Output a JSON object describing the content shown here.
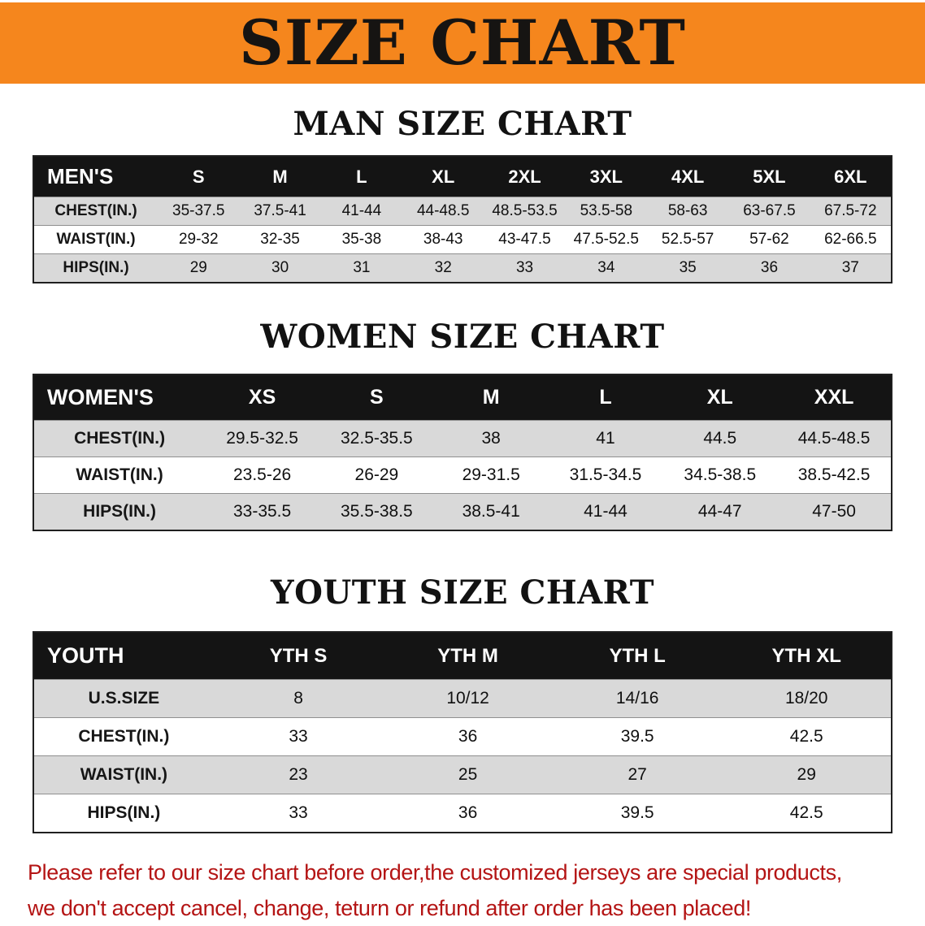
{
  "theme": {
    "banner_bg": "#f5861d",
    "header_bg": "#141414",
    "row_alt": "#d9d9d9",
    "footer_red": "#b41414"
  },
  "banner": {
    "title": "SIZE CHART"
  },
  "sections": [
    {
      "id": "men",
      "heading": "MAN SIZE CHART",
      "table": {
        "corner_label": "MEN'S",
        "sizes": [
          "S",
          "M",
          "L",
          "XL",
          "2XL",
          "3XL",
          "4XL",
          "5XL",
          "6XL"
        ],
        "rows": [
          {
            "label": "CHEST(IN.)",
            "values": [
              "35-37.5",
              "37.5-41",
              "41-44",
              "44-48.5",
              "48.5-53.5",
              "53.5-58",
              "58-63",
              "63-67.5",
              "67.5-72"
            ]
          },
          {
            "label": "WAIST(IN.)",
            "values": [
              "29-32",
              "32-35",
              "35-38",
              "38-43",
              "43-47.5",
              "47.5-52.5",
              "52.5-57",
              "57-62",
              "62-66.5"
            ]
          },
          {
            "label": "HIPS(IN.)",
            "values": [
              "29",
              "30",
              "31",
              "32",
              "33",
              "34",
              "35",
              "36",
              "37"
            ]
          }
        ]
      }
    },
    {
      "id": "women",
      "heading": "WOMEN SIZE CHART",
      "table": {
        "corner_label": "WOMEN'S",
        "sizes": [
          "XS",
          "S",
          "M",
          "L",
          "XL",
          "XXL"
        ],
        "rows": [
          {
            "label": "CHEST(IN.)",
            "values": [
              "29.5-32.5",
              "32.5-35.5",
              "38",
              "41",
              "44.5",
              "44.5-48.5"
            ]
          },
          {
            "label": "WAIST(IN.)",
            "values": [
              "23.5-26",
              "26-29",
              "29-31.5",
              "31.5-34.5",
              "34.5-38.5",
              "38.5-42.5"
            ]
          },
          {
            "label": "HIPS(IN.)",
            "values": [
              "33-35.5",
              "35.5-38.5",
              "38.5-41",
              "41-44",
              "44-47",
              "47-50"
            ]
          }
        ]
      }
    },
    {
      "id": "youth",
      "heading": "YOUTH SIZE CHART",
      "table": {
        "corner_label": "YOUTH",
        "sizes": [
          "YTH S",
          "YTH M",
          "YTH L",
          "YTH XL"
        ],
        "rows": [
          {
            "label": "U.S.SIZE",
            "values": [
              "8",
              "10/12",
              "14/16",
              "18/20"
            ]
          },
          {
            "label": "CHEST(IN.)",
            "values": [
              "33",
              "36",
              "39.5",
              "42.5"
            ]
          },
          {
            "label": "WAIST(IN.)",
            "values": [
              "23",
              "25",
              "27",
              "29"
            ]
          },
          {
            "label": "HIPS(IN.)",
            "values": [
              "33",
              "36",
              "39.5",
              "42.5"
            ]
          }
        ]
      }
    }
  ],
  "footer": {
    "line1": "Please refer to our size chart before order,the customized jerseys are special products,",
    "line2": "we don't accept cancel, change, teturn or refund after order has been placed!"
  }
}
